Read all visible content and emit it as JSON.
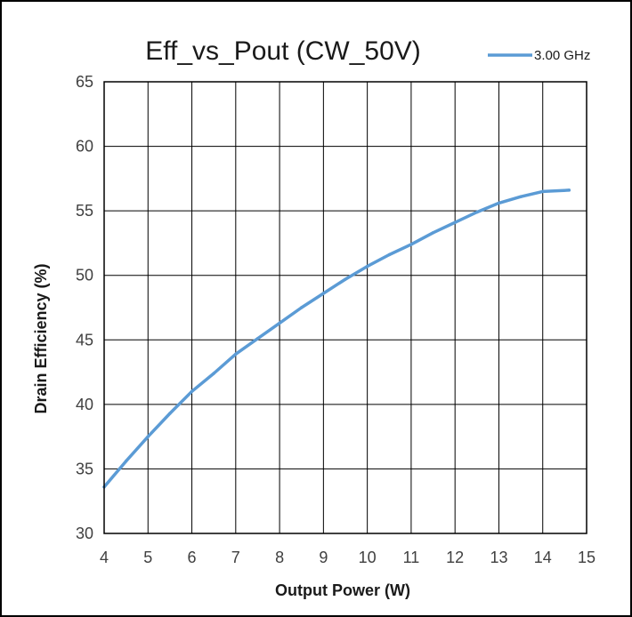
{
  "chart_data": {
    "type": "line",
    "title": "Eff_vs_Pout (CW_50V)",
    "xlabel": "Output Power (W)",
    "ylabel": "Drain Efficiency (%)",
    "xlim": [
      4,
      15
    ],
    "ylim": [
      30,
      65
    ],
    "x_ticks": [
      "4",
      "5",
      "6",
      "7",
      "8",
      "9",
      "10",
      "11",
      "12",
      "13",
      "14",
      "15"
    ],
    "y_ticks": [
      "30",
      "35",
      "40",
      "45",
      "50",
      "55",
      "60",
      "65"
    ],
    "grid": true,
    "legend_position": "top-right",
    "series": [
      {
        "name": "3.00 GHz",
        "color": "#5B9BD5",
        "x": [
          4.0,
          4.5,
          5.0,
          5.5,
          6.0,
          6.5,
          7.0,
          7.5,
          8.0,
          8.5,
          9.0,
          9.5,
          10.0,
          10.5,
          11.0,
          11.5,
          12.0,
          12.5,
          13.0,
          13.5,
          14.0,
          14.6
        ],
        "values": [
          33.6,
          35.6,
          37.5,
          39.3,
          41.0,
          42.4,
          43.9,
          45.1,
          46.3,
          47.5,
          48.6,
          49.7,
          50.7,
          51.6,
          52.4,
          53.3,
          54.1,
          54.9,
          55.6,
          56.1,
          56.5,
          56.6
        ]
      }
    ]
  }
}
